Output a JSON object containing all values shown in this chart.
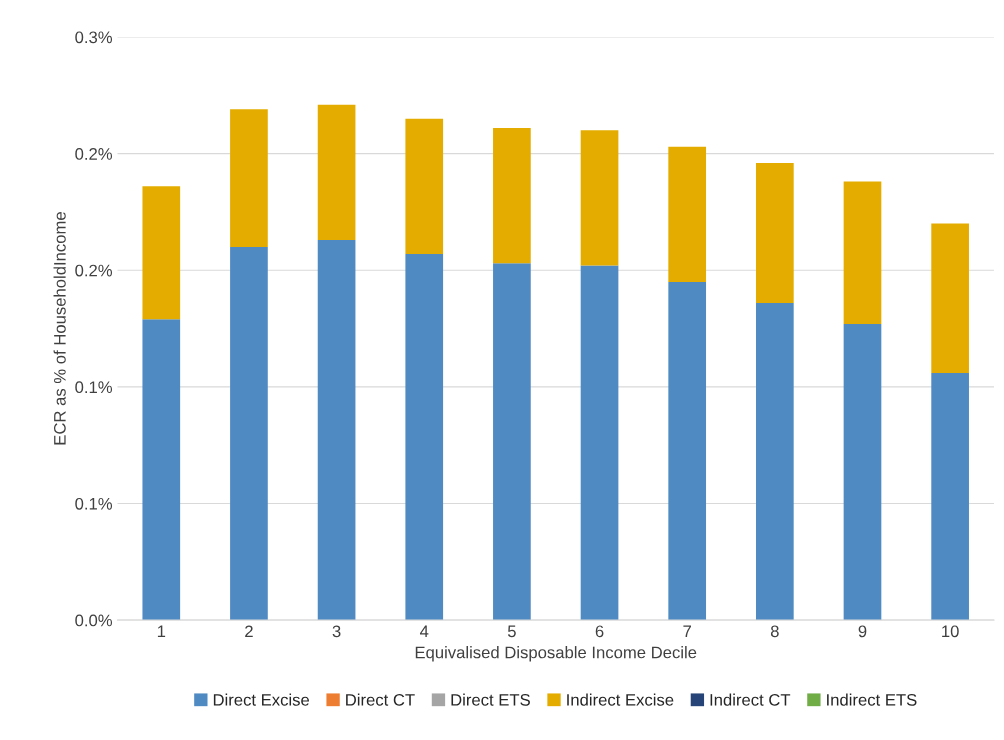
{
  "chart_data": {
    "type": "bar",
    "stacked": true,
    "xlabel": "Equivalised Disposable Income Decile",
    "ylabel": "ECR as % of HouseholdIncome",
    "categories": [
      "1",
      "2",
      "3",
      "4",
      "5",
      "6",
      "7",
      "8",
      "9",
      "10"
    ],
    "series": [
      {
        "name": "Direct Excise",
        "color": "#4f8bc2",
        "values": [
          0.129,
          0.16,
          0.163,
          0.157,
          0.153,
          0.152,
          0.145,
          0.136,
          0.127,
          0.106
        ]
      },
      {
        "name": "Direct CT",
        "color": "#ed7d31",
        "values": [
          0,
          0,
          0,
          0,
          0,
          0,
          0,
          0,
          0,
          0
        ]
      },
      {
        "name": "Direct ETS",
        "color": "#a5a5a5",
        "values": [
          0,
          0,
          0,
          0,
          0,
          0,
          0,
          0,
          0,
          0
        ]
      },
      {
        "name": "Indirect Excise",
        "color": "#e5ac00",
        "values": [
          0.057,
          0.059,
          0.058,
          0.058,
          0.058,
          0.058,
          0.058,
          0.06,
          0.061,
          0.064
        ]
      },
      {
        "name": "Indirect CT",
        "color": "#264478",
        "values": [
          0,
          0,
          0,
          0,
          0,
          0,
          0,
          0,
          0,
          0
        ]
      },
      {
        "name": "Indirect ETS",
        "color": "#70ad47",
        "values": [
          0,
          0,
          0,
          0,
          0,
          0,
          0,
          0,
          0,
          0
        ]
      }
    ],
    "ylim": [
      0,
      0.25
    ],
    "yticks": [
      {
        "value": 0,
        "label": "0.0%"
      },
      {
        "value": 0.05,
        "label": "0.1%"
      },
      {
        "value": 0.1,
        "label": "0.1%"
      },
      {
        "value": 0.15,
        "label": "0.2%"
      },
      {
        "value": 0.2,
        "label": "0.2%"
      },
      {
        "value": 0.25,
        "label": "0.3%"
      }
    ],
    "grid": "y",
    "legend": "bottom"
  }
}
